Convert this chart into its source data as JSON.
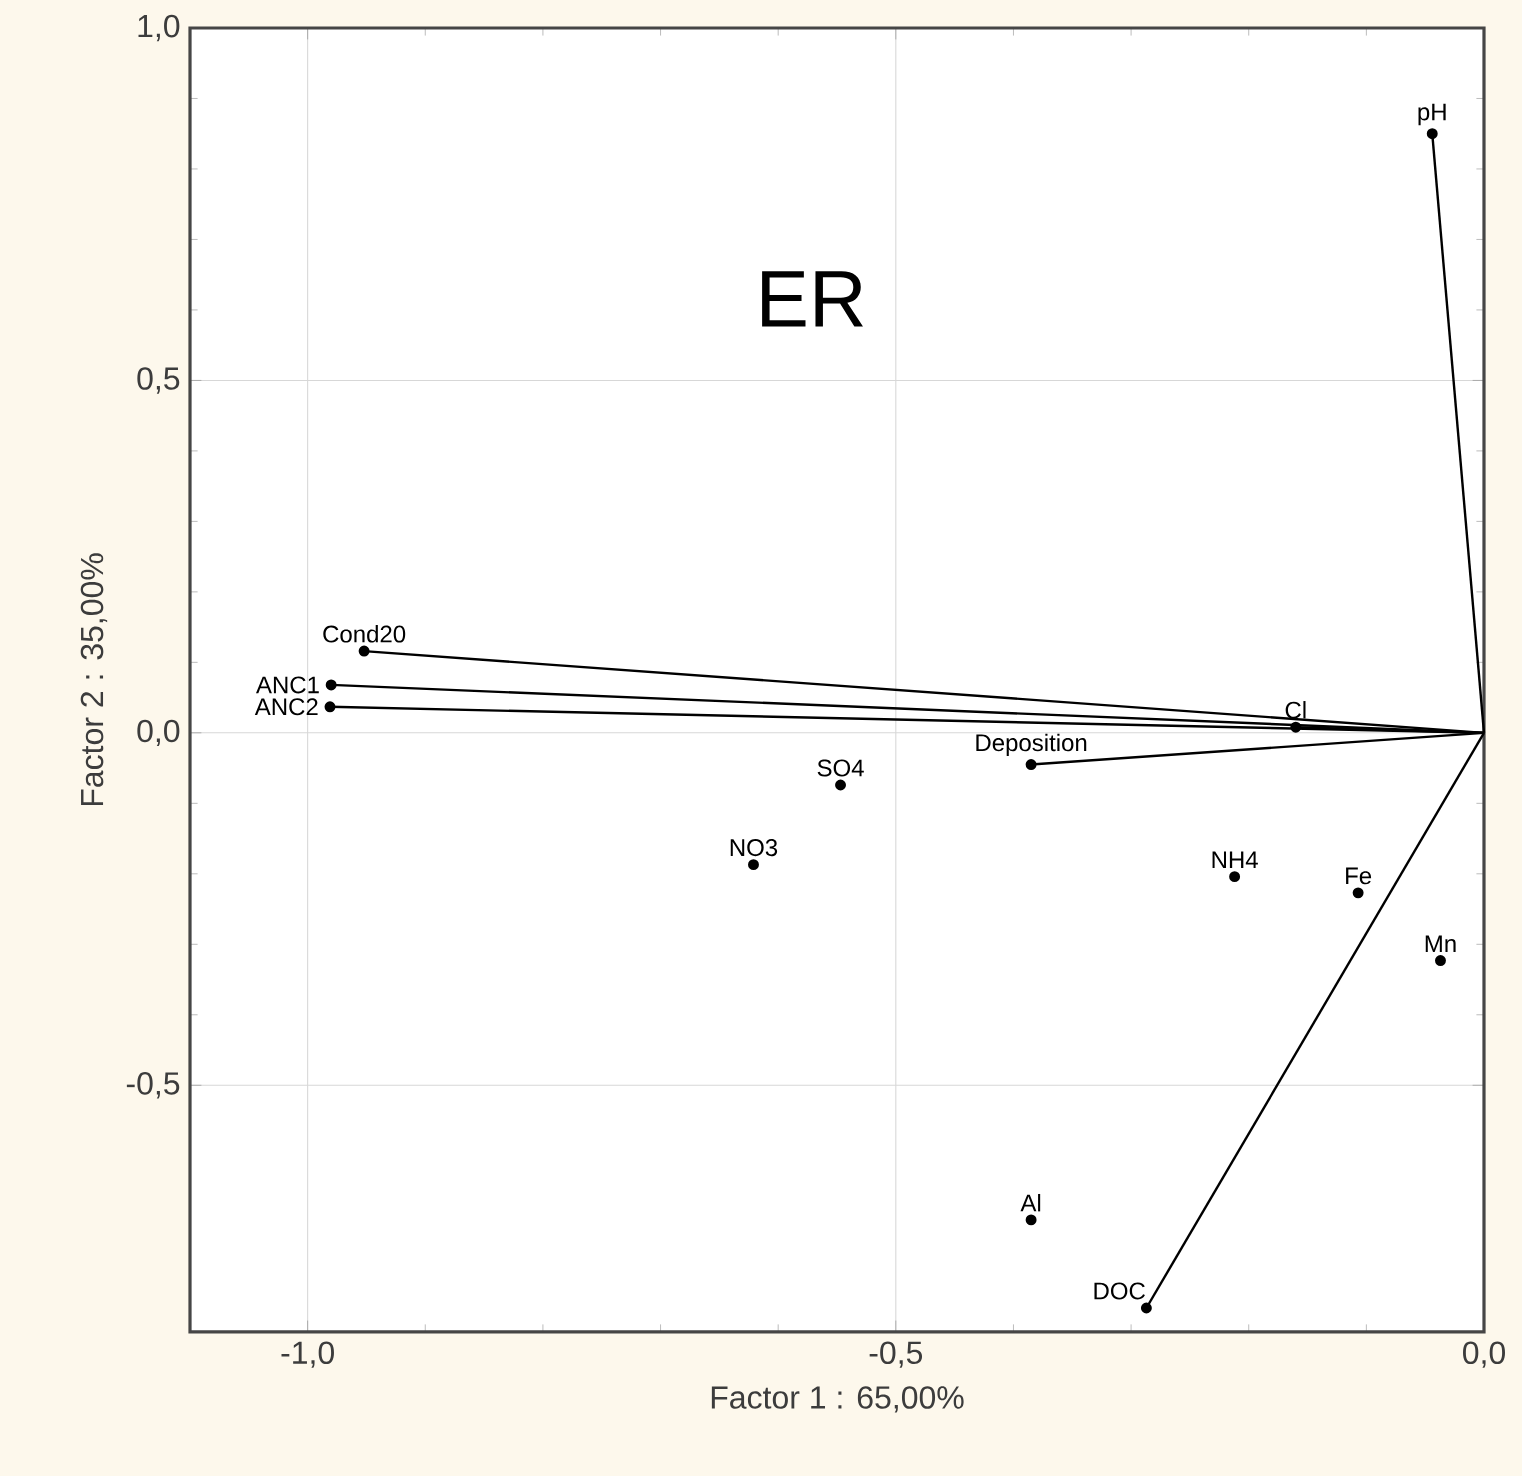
{
  "chart_data": {
    "type": "scatter",
    "title": "ER",
    "xlabel": "Factor 1 : 65,00%",
    "ylabel": "Factor 2 : 35,00%",
    "xlim": [
      -1.1,
      0
    ],
    "ylim": [
      -0.85,
      1.0
    ],
    "xticks": [
      {
        "value": -1.0,
        "label": "-1,0"
      },
      {
        "value": -0.5,
        "label": "-0,5"
      },
      {
        "value": 0.0,
        "label": "0,0"
      }
    ],
    "yticks": [
      {
        "value": -0.5,
        "label": "-0,5"
      },
      {
        "value": 0.0,
        "label": "0,0"
      },
      {
        "value": 0.5,
        "label": "0,5"
      },
      {
        "value": 1.0,
        "label": "1,0"
      }
    ],
    "grid": true,
    "series": [
      {
        "color": "#000000",
        "marker": "circle",
        "x": [
          -0.044,
          -0.952,
          -0.98,
          -0.981,
          -0.16,
          -0.385,
          -0.547,
          -0.621,
          -0.212,
          -0.107,
          -0.037,
          -0.385,
          -0.287
        ],
        "values": [
          0.85,
          0.116,
          0.068,
          0.037,
          0.008,
          -0.045,
          -0.074,
          -0.187,
          -0.204,
          -0.227,
          -0.323,
          -0.691,
          -0.816
        ]
      },
      {
        "type": "line",
        "color": "#000000",
        "marker": "none",
        "x": [
          0,
          -0.044
        ],
        "values": [
          0,
          0.85
        ]
      },
      {
        "type": "line",
        "color": "#000000",
        "marker": "none",
        "x": [
          0,
          -0.952
        ],
        "values": [
          0,
          0.116
        ]
      },
      {
        "type": "line",
        "color": "#000000",
        "marker": "none",
        "x": [
          0,
          -0.98
        ],
        "values": [
          0,
          0.068
        ]
      },
      {
        "type": "line",
        "color": "#000000",
        "marker": "none",
        "x": [
          0,
          -0.981
        ],
        "values": [
          0,
          0.037
        ]
      },
      {
        "type": "line",
        "color": "#000000",
        "marker": "none",
        "x": [
          0,
          -0.16
        ],
        "values": [
          0,
          0.008
        ]
      },
      {
        "type": "line",
        "color": "#000000",
        "marker": "none",
        "x": [
          0,
          -0.385
        ],
        "values": [
          0,
          -0.045
        ]
      },
      {
        "type": "line",
        "color": "#000000",
        "marker": "none",
        "x": [
          0,
          -0.287
        ],
        "values": [
          0,
          -0.816
        ]
      }
    ],
    "annotations": [
      {
        "text": "pH",
        "x": -0.044,
        "y": 0.85
      },
      {
        "text": "Cond20",
        "x": -0.952,
        "y": 0.116
      },
      {
        "text": "ANC1",
        "x": -0.98,
        "y": 0.068
      },
      {
        "text": "ANC2",
        "x": -0.981,
        "y": 0.037
      },
      {
        "text": "Cl",
        "x": -0.16,
        "y": 0.008
      },
      {
        "text": "Deposition",
        "x": -0.385,
        "y": -0.045
      },
      {
        "text": "SO4",
        "x": -0.547,
        "y": -0.074
      },
      {
        "text": "NO3",
        "x": -0.621,
        "y": -0.187
      },
      {
        "text": "NH4",
        "x": -0.212,
        "y": -0.204
      },
      {
        "text": "Fe",
        "x": -0.107,
        "y": -0.227
      },
      {
        "text": "Mn",
        "x": -0.037,
        "y": -0.323
      },
      {
        "text": "Al",
        "x": -0.385,
        "y": -0.691
      },
      {
        "text": "DOC",
        "x": -0.287,
        "y": -0.816
      }
    ]
  }
}
